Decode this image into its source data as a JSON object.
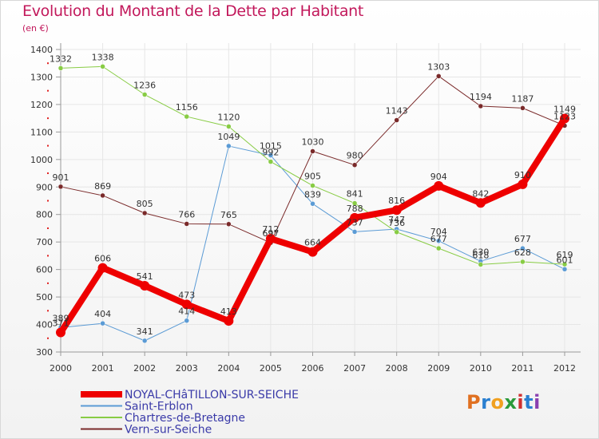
{
  "title": "Evolution du Montant de la Dette par Habitant",
  "unit": "(en €)",
  "logo": "Proxiti",
  "logo_colors": [
    "#e07020",
    "#2a7fd0",
    "#f0a020",
    "#2a9a3a",
    "#d03030",
    "#2a7fd0",
    "#8a40b0"
  ],
  "chart_data": {
    "type": "line",
    "x": [
      "2000",
      "2001",
      "2002",
      "2003",
      "2004",
      "2005",
      "2006",
      "2007",
      "2008",
      "2009",
      "2010",
      "2011",
      "2012"
    ],
    "ylim": [
      300,
      1400
    ],
    "yticks": [
      300,
      400,
      500,
      600,
      700,
      800,
      900,
      1000,
      1100,
      1200,
      1300,
      1400
    ],
    "legend_position": "bottom-left",
    "series": [
      {
        "name": "NOYAL-CHâTILLON-SUR-SEICHE",
        "color": "#ee0000",
        "line_width": 8,
        "values": [
          371,
          606,
          541,
          473,
          413,
          712,
          664,
          788,
          816,
          904,
          842,
          910,
          1149
        ],
        "labels": [
          "371",
          "606",
          "541",
          "473",
          "413",
          "712",
          "664",
          "788",
          "816",
          "904",
          "842",
          "910",
          "1149"
        ]
      },
      {
        "name": "Saint-Erblon",
        "color": "#5b9bd5",
        "line_width": 1,
        "values": [
          389,
          404,
          341,
          414,
          1049,
          1015,
          839,
          737,
          747,
          704,
          630,
          677,
          601
        ],
        "labels": [
          "389",
          "404",
          "341",
          "414",
          "1049",
          "1015",
          "839",
          "737",
          "747",
          "704",
          "630",
          "677",
          "601"
        ]
      },
      {
        "name": "Chartres-de-Bretagne",
        "color": "#88cc44",
        "line_width": 1,
        "values": [
          1332,
          1338,
          1236,
          1156,
          1120,
          992,
          905,
          841,
          736,
          677,
          618,
          628,
          619
        ],
        "labels": [
          "1332",
          "1338",
          "1236",
          "1156",
          "1120",
          "992",
          "905",
          "841",
          "736",
          "677",
          "618",
          "628",
          "619"
        ]
      },
      {
        "name": "Vern-sur-Seiche",
        "color": "#7a2a2a",
        "line_width": 1,
        "values": [
          901,
          869,
          805,
          766,
          765,
          697,
          1030,
          980,
          1143,
          1303,
          1194,
          1187,
          1123
        ],
        "labels": [
          "901",
          "869",
          "805",
          "766",
          "765",
          "697",
          "1030",
          "980",
          "1143",
          "1303",
          "1194",
          "1187",
          "1123"
        ]
      }
    ]
  }
}
